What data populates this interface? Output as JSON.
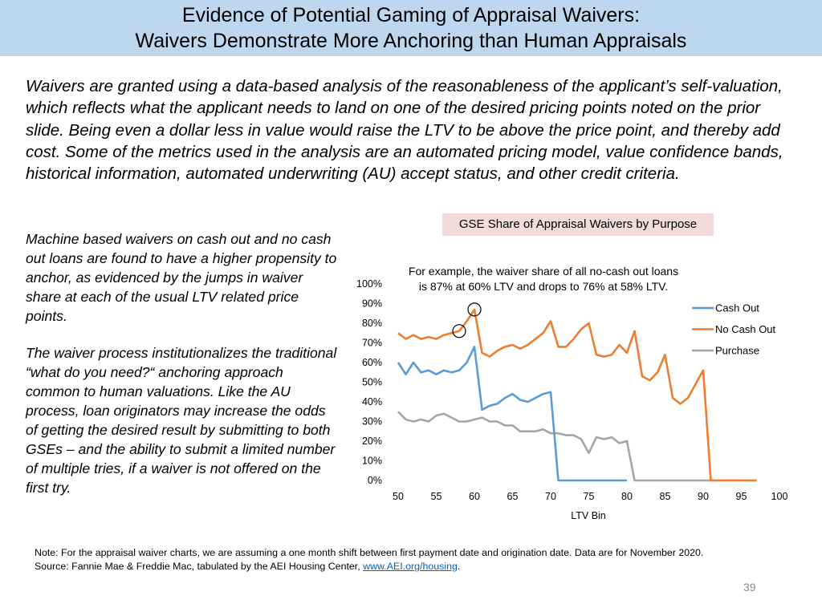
{
  "header": {
    "title_line1": "Evidence of Potential Gaming of Appraisal Waivers:",
    "title_line2": "Waivers Demonstrate More Anchoring than Human Appraisals"
  },
  "intro_text": "Waivers are granted using a data-based analysis of the reasonableness of the applicant’s self-valuation, which reflects what the applicant needs to land on one of the desired pricing points noted on the prior slide. Being even a dollar less in value would raise the LTV to be above the price point, and thereby add cost. Some of the metrics used in the analysis are an automated pricing model, value confidence bands, historical information, automated underwriting (AU) accept status, and other credit criteria.",
  "side_text_1": "Machine based waivers on cash out and no cash out loans are found to have a higher propensity to anchor, as evidenced by the jumps in waiver share at each of the usual LTV related price points.",
  "side_text_2": "The waiver process institutionalizes the traditional “what do you need?“ anchoring approach common to human valuations. Like the AU process, loan originators may increase the odds of getting the desired result by submitting to both GSEs  – and the ability to submit a limited number of multiple tries, if a waiver is not offered on the first try.",
  "note": {
    "line1": "Note: For the appraisal waiver charts, we are assuming a one month shift between first payment date and origination date. Data are for November 2020.",
    "line2_prefix": "Source: Fannie Mae & Freddie Mac, tabulated by the AEI Housing Center, ",
    "link": "www.AEI.org/housing",
    "line2_suffix": "."
  },
  "page_number": "39",
  "colors": {
    "cash_out": "#5b9bd5",
    "no_cash_out": "#ed7d31",
    "purchase": "#a5a5a5",
    "title_bar": "#bdd7ee",
    "chart_title_bg": "#f2dcdb"
  },
  "chart_data": {
    "type": "line",
    "title": "GSE Share of Appraisal Waivers by Purpose",
    "xlabel": "LTV Bin",
    "ylabel": "",
    "xlim": [
      50,
      100
    ],
    "ylim": [
      0,
      100
    ],
    "x_ticks": [
      "50",
      "55",
      "60",
      "65",
      "70",
      "75",
      "80",
      "85",
      "90",
      "95",
      "100"
    ],
    "y_ticks": [
      "0%",
      "10%",
      "20%",
      "30%",
      "40%",
      "50%",
      "60%",
      "70%",
      "80%",
      "90%",
      "100%"
    ],
    "annotation": "For example, the waiver share of all no-cash out loans\nis 87% at 60% LTV and drops to 76% at 58% LTV.",
    "circled_points": [
      [
        58,
        76
      ],
      [
        60,
        87
      ]
    ],
    "legend": [
      "Cash Out",
      "No Cash Out",
      "Purchase"
    ],
    "series": [
      {
        "name": "Cash Out",
        "x": [
          50,
          51,
          52,
          53,
          54,
          55,
          56,
          57,
          58,
          59,
          60,
          61,
          62,
          63,
          64,
          65,
          66,
          67,
          68,
          69,
          70,
          71,
          72,
          73,
          74,
          75,
          76,
          77,
          78,
          79,
          80
        ],
        "values": [
          60,
          54,
          60,
          55,
          56,
          54,
          56,
          55,
          56,
          60,
          68,
          36,
          38,
          39,
          42,
          44,
          41,
          40,
          42,
          44,
          45,
          0,
          0,
          0,
          0,
          0,
          0,
          0,
          0,
          0,
          0
        ]
      },
      {
        "name": "No Cash Out",
        "x": [
          50,
          51,
          52,
          53,
          54,
          55,
          56,
          57,
          58,
          59,
          60,
          61,
          62,
          63,
          64,
          65,
          66,
          67,
          68,
          69,
          70,
          71,
          72,
          73,
          74,
          75,
          76,
          77,
          78,
          79,
          80,
          81,
          82,
          83,
          84,
          85,
          86,
          87,
          88,
          89,
          90,
          91,
          92,
          93,
          94,
          95,
          96,
          97
        ],
        "values": [
          75,
          72,
          74,
          72,
          73,
          72,
          74,
          75,
          76,
          81,
          87,
          65,
          63,
          66,
          68,
          69,
          67,
          69,
          72,
          75,
          81,
          68,
          68,
          72,
          77,
          80,
          64,
          63,
          64,
          69,
          65,
          76,
          53,
          51,
          55,
          64,
          42,
          39,
          42,
          49,
          56,
          0,
          0,
          0,
          0,
          0,
          0,
          0
        ]
      },
      {
        "name": "Purchase",
        "x": [
          50,
          51,
          52,
          53,
          54,
          55,
          56,
          57,
          58,
          59,
          60,
          61,
          62,
          63,
          64,
          65,
          66,
          67,
          68,
          69,
          70,
          71,
          72,
          73,
          74,
          75,
          76,
          77,
          78,
          79,
          80,
          81,
          82,
          83,
          84,
          85,
          86,
          87,
          88,
          89,
          90,
          91,
          92,
          93,
          94,
          95,
          96,
          97
        ],
        "values": [
          35,
          31,
          30,
          31,
          30,
          33,
          34,
          32,
          30,
          30,
          31,
          32,
          30,
          30,
          28,
          28,
          25,
          25,
          25,
          26,
          24,
          24,
          23,
          23,
          21,
          14,
          22,
          21,
          22,
          19,
          20,
          0,
          0,
          0,
          0,
          0,
          0,
          0,
          0,
          0,
          0,
          0,
          0,
          0,
          0,
          0,
          0,
          0
        ]
      }
    ]
  }
}
